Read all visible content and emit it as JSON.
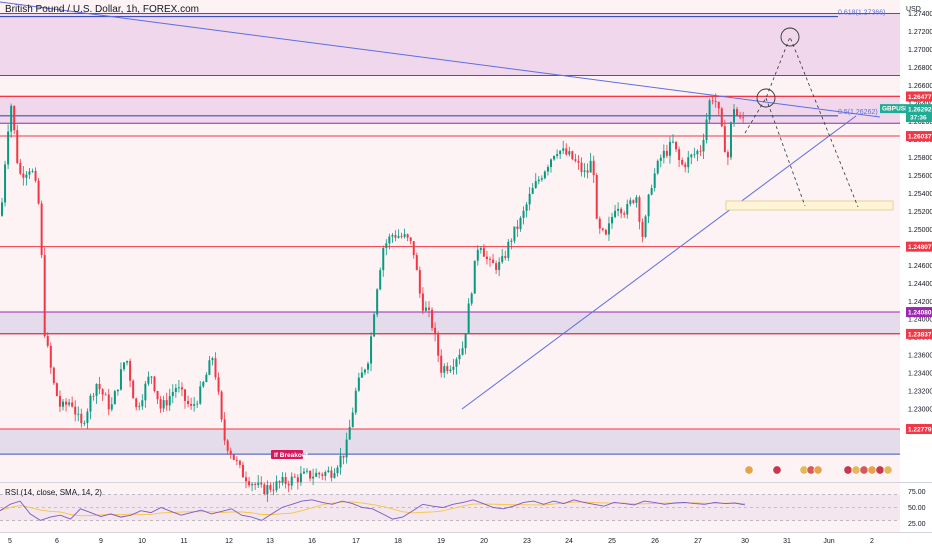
{
  "chart_data": {
    "type": "candlestick",
    "title": "British Pound / U.S. Dollar, 1h, FOREX.com",
    "symbol": "GBPUSD",
    "currency": "USD",
    "price_axis": {
      "range": [
        1.2219,
        1.2755
      ],
      "ticks": [
        "1.27400",
        "1.27200",
        "1.27000",
        "1.26800",
        "1.26600",
        "1.26400",
        "1.26200",
        "1.26000",
        "1.25800",
        "1.25600",
        "1.25400",
        "1.25200",
        "1.25000",
        "1.24800",
        "1.24600",
        "1.24400",
        "1.24200",
        "1.24000",
        "1.23800",
        "1.23600",
        "1.23400",
        "1.23200",
        "1.23000",
        "1.22800"
      ]
    },
    "time_axis": {
      "labels": [
        "5",
        "6",
        "9",
        "10",
        "11",
        "12",
        "13",
        "16",
        "17",
        "18",
        "19",
        "20",
        "23",
        "24",
        "25",
        "26",
        "27",
        "30",
        "31",
        "Jun",
        "2"
      ]
    },
    "current_price": {
      "value": "1.26292",
      "countdown": "37:36"
    },
    "levels": [
      {
        "value": 1.26477,
        "label": "1.26477",
        "color": "#f23645"
      },
      {
        "value": 1.26037,
        "label": "1.26037",
        "color": "#f23645"
      },
      {
        "value": 1.24807,
        "label": "1.24807",
        "color": "#f23645"
      },
      {
        "value": 1.2408,
        "label": "1.24080",
        "color": "#9c27b0"
      },
      {
        "value": 1.23837,
        "label": "1.23837",
        "color": "#f23645"
      },
      {
        "value": 1.22779,
        "label": "1.22779",
        "color": "#f23645"
      }
    ],
    "zones": [
      {
        "from": 1.2671,
        "to": 1.274,
        "color": "#9c27b0"
      },
      {
        "from": 1.2618,
        "to": 1.2648,
        "color": "#9c27b0"
      },
      {
        "from": 1.2384,
        "to": 1.2408,
        "color": "#3f51b5"
      },
      {
        "from": 1.225,
        "to": 1.2278,
        "color": "#3f51b5"
      }
    ],
    "fib_labels": [
      {
        "text": "0.618(1.27366)",
        "value": 1.27366
      },
      {
        "text": "0.5(1.26262)",
        "value": 1.26262
      }
    ],
    "annotation": "If Breakout",
    "close_path": [
      [
        0,
        1.2515
      ],
      [
        6,
        1.2605
      ],
      [
        10,
        1.264
      ],
      [
        18,
        1.256
      ],
      [
        30,
        1.257
      ],
      [
        37,
        1.2535
      ],
      [
        40,
        1.25
      ],
      [
        42,
        1.24
      ],
      [
        46,
        1.237
      ],
      [
        52,
        1.233
      ],
      [
        60,
        1.23
      ],
      [
        70,
        1.231
      ],
      [
        80,
        1.228
      ],
      [
        95,
        1.233
      ],
      [
        110,
        1.23
      ],
      [
        125,
        1.236
      ],
      [
        135,
        1.23
      ],
      [
        150,
        1.234
      ],
      [
        160,
        1.23
      ],
      [
        175,
        1.2325
      ],
      [
        190,
        1.23
      ],
      [
        200,
        1.232
      ],
      [
        212,
        1.236
      ],
      [
        218,
        1.231
      ],
      [
        222,
        1.227
      ],
      [
        240,
        1.223
      ],
      [
        260,
        1.221
      ],
      [
        300,
        1.2225
      ],
      [
        330,
        1.223
      ],
      [
        345,
        1.2255
      ],
      [
        355,
        1.232
      ],
      [
        368,
        1.236
      ],
      [
        375,
        1.243
      ],
      [
        382,
        1.248
      ],
      [
        392,
        1.2495
      ],
      [
        405,
        1.249
      ],
      [
        412,
        1.248
      ],
      [
        420,
        1.242
      ],
      [
        430,
        1.24
      ],
      [
        440,
        1.2345
      ],
      [
        450,
        1.235
      ],
      [
        462,
        1.237
      ],
      [
        470,
        1.243
      ],
      [
        478,
        1.249
      ],
      [
        488,
        1.246
      ],
      [
        500,
        1.246
      ],
      [
        510,
        1.249
      ],
      [
        520,
        1.251
      ],
      [
        530,
        1.254
      ],
      [
        545,
        1.257
      ],
      [
        555,
        1.259
      ],
      [
        570,
        1.258
      ],
      [
        585,
        1.256
      ],
      [
        592,
        1.258
      ],
      [
        596,
        1.25
      ],
      [
        605,
        1.249
      ],
      [
        615,
        1.253
      ],
      [
        625,
        1.252
      ],
      [
        635,
        1.254
      ],
      [
        642,
        1.249
      ],
      [
        650,
        1.255
      ],
      [
        660,
        1.258
      ],
      [
        672,
        1.2595
      ],
      [
        680,
        1.257
      ],
      [
        690,
        1.258
      ],
      [
        700,
        1.259
      ],
      [
        705,
        1.262
      ],
      [
        710,
        1.265
      ],
      [
        716,
        1.264
      ],
      [
        722,
        1.26
      ],
      [
        727,
        1.258
      ],
      [
        732,
        1.264
      ],
      [
        738,
        1.262
      ],
      [
        745,
        1.2625
      ]
    ],
    "rsi": {
      "label": "RSI (14, close, SMA, 14, 2)",
      "ticks": [
        "75.00",
        "50.00",
        "25.00"
      ],
      "range": [
        15,
        85
      ],
      "values": [
        45,
        55,
        60,
        40,
        30,
        35,
        38,
        32,
        48,
        42,
        36,
        40,
        35,
        38,
        45,
        42,
        50,
        44,
        38,
        42,
        46,
        40,
        44,
        48,
        38,
        35,
        30,
        40,
        50,
        55,
        60,
        62,
        58,
        55,
        60,
        56,
        50,
        48,
        40,
        32,
        35,
        45,
        55,
        52,
        50,
        55,
        58,
        62,
        56,
        50,
        48,
        52,
        58,
        60,
        55,
        60,
        56,
        62,
        58,
        55,
        52,
        58,
        56,
        54,
        60,
        58,
        55,
        57,
        58,
        56,
        55,
        58,
        56,
        57,
        54
      ]
    }
  }
}
